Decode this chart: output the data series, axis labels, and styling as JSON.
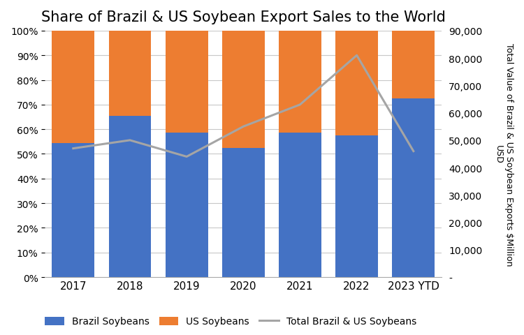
{
  "title": "Share of Brazil & US Soybean Export Sales to the World",
  "years": [
    "2017",
    "2018",
    "2019",
    "2020",
    "2021",
    "2022",
    "2023 YTD"
  ],
  "brazil_pct": [
    54.5,
    65.5,
    58.5,
    52.5,
    58.5,
    57.5,
    72.5
  ],
  "us_pct": [
    45.5,
    34.5,
    41.5,
    47.5,
    41.5,
    42.5,
    27.5
  ],
  "total_value": [
    47000,
    50000,
    44000,
    55000,
    63000,
    81000,
    46000
  ],
  "brazil_color": "#4472C4",
  "us_color": "#ED7D31",
  "line_color": "#A5A5A5",
  "ylabel_right": "Total Value of Brazil & US Soybean Exports $Million\nUSD",
  "ylim_left": [
    0,
    100
  ],
  "ylim_right": [
    0,
    90000
  ],
  "yticks_right": [
    0,
    10000,
    20000,
    30000,
    40000,
    50000,
    60000,
    70000,
    80000,
    90000
  ],
  "ytick_labels_right": [
    "-",
    "10,000",
    "20,000",
    "30,000",
    "40,000",
    "50,000",
    "60,000",
    "70,000",
    "80,000",
    "90,000"
  ],
  "yticks_left_pct": [
    0,
    10,
    20,
    30,
    40,
    50,
    60,
    70,
    80,
    90,
    100
  ],
  "background_color": "#FFFFFF",
  "legend_labels": [
    "Brazil Soybeans",
    "US Soybeans",
    "Total Brazil & US Soybeans"
  ],
  "title_fontsize": 15,
  "bar_width": 0.75,
  "grid_color": "#C8C8C8",
  "tick_label_fontsize": 10,
  "xtick_fontsize": 11
}
